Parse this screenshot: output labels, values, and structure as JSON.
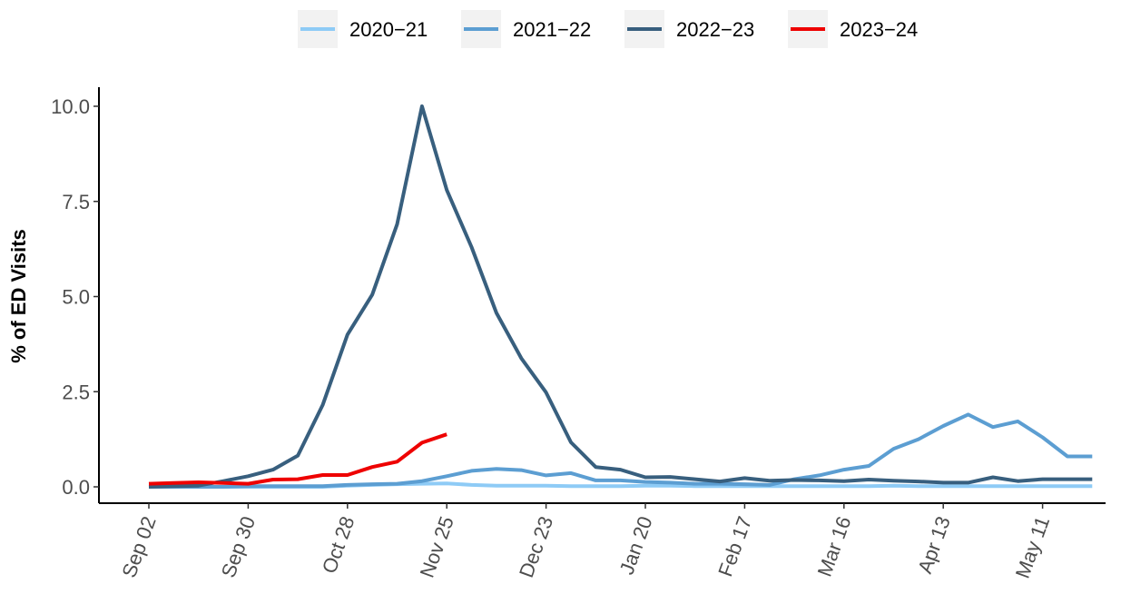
{
  "chart_data": {
    "type": "line",
    "title": "",
    "xlabel": "",
    "ylabel": "% of ED Visits",
    "ylim": [
      -0.35,
      10.5
    ],
    "yticks": [
      0.0,
      2.5,
      5.0,
      7.5,
      10.0
    ],
    "ytick_labels": [
      "0.0",
      "2.5",
      "5.0",
      "7.5",
      "10.0"
    ],
    "xtick_labels": [
      "Sep 02",
      "Sep 30",
      "Oct 28",
      "Nov 25",
      "Dec 23",
      "Jan 20",
      "Feb 17",
      "Mar 16",
      "Apr 13",
      "May 11"
    ],
    "xtick_weeks": [
      0,
      4,
      8,
      12,
      16,
      20,
      24,
      28,
      32,
      36
    ],
    "x_unit_note": "",
    "grid": false,
    "legend_position": "top",
    "series": [
      {
        "name": "2020−21",
        "color": "#8ecbf6",
        "values": [
          0.0,
          0.0,
          0.0,
          0.0,
          0.0,
          0.0,
          0.0,
          0.0,
          0.03,
          0.05,
          0.07,
          0.08,
          0.09,
          0.05,
          0.03,
          0.03,
          0.03,
          0.02,
          0.02,
          0.02,
          0.03,
          0.03,
          0.02,
          0.02,
          0.02,
          0.02,
          0.02,
          0.02,
          0.02,
          0.02,
          0.03,
          0.02,
          0.02,
          0.02,
          0.02,
          0.02,
          0.02,
          0.02,
          0.02
        ]
      },
      {
        "name": "2021−22",
        "color": "#5c9ed2",
        "values": [
          0.0,
          0.0,
          0.0,
          0.0,
          0.02,
          0.02,
          0.02,
          0.02,
          0.05,
          0.07,
          0.08,
          0.15,
          0.28,
          0.42,
          0.47,
          0.44,
          0.3,
          0.36,
          0.17,
          0.17,
          0.13,
          0.11,
          0.08,
          0.08,
          0.07,
          0.05,
          0.2,
          0.3,
          0.45,
          0.55,
          1.0,
          1.25,
          1.6,
          1.9,
          1.57,
          1.72,
          1.3,
          0.8,
          0.8
        ]
      },
      {
        "name": "2022−23",
        "color": "#385f7e",
        "values": [
          0.0,
          0.02,
          0.03,
          0.15,
          0.28,
          0.45,
          0.82,
          2.15,
          4.0,
          5.05,
          6.9,
          10.0,
          7.8,
          6.3,
          4.57,
          3.38,
          2.48,
          1.17,
          0.52,
          0.45,
          0.25,
          0.26,
          0.2,
          0.14,
          0.23,
          0.16,
          0.18,
          0.17,
          0.15,
          0.19,
          0.16,
          0.14,
          0.11,
          0.11,
          0.25,
          0.15,
          0.2,
          0.2,
          0.2
        ]
      },
      {
        "name": "2023−24",
        "color": "#ee0000",
        "values": [
          0.08,
          0.1,
          0.12,
          0.1,
          0.08,
          0.19,
          0.2,
          0.31,
          0.31,
          0.52,
          0.66,
          1.16,
          1.38
        ]
      }
    ]
  }
}
